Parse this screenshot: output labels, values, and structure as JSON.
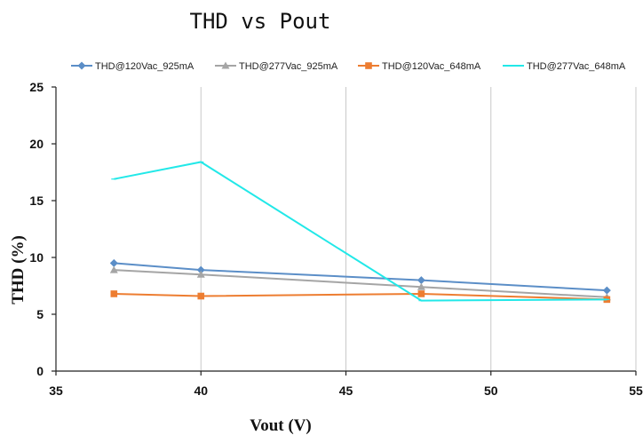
{
  "chart_data": {
    "type": "line",
    "title": "THD vs Pout",
    "xlabel": "Vout (V)",
    "ylabel": "THD (%)",
    "xlim": [
      35,
      55
    ],
    "ylim": [
      0,
      25
    ],
    "xticks": [
      35,
      40,
      45,
      50,
      55
    ],
    "yticks": [
      0,
      5,
      10,
      15,
      20,
      25
    ],
    "grid": "vertical",
    "legend": "top",
    "series": [
      {
        "name": "THD@120Vac_925mA",
        "color": "#5b8ec7",
        "marker": "diamond",
        "x": [
          37,
          40,
          47.6,
          54
        ],
        "y": [
          9.5,
          8.9,
          8.0,
          7.1
        ]
      },
      {
        "name": "THD@277Vac_925mA",
        "color": "#a5a5a5",
        "marker": "triangle",
        "x": [
          37,
          40,
          47.6,
          54
        ],
        "y": [
          8.9,
          8.5,
          7.4,
          6.5
        ]
      },
      {
        "name": "THD@120Vac_648mA",
        "color": "#ed7d31",
        "marker": "square",
        "x": [
          37,
          40,
          47.6,
          54
        ],
        "y": [
          6.8,
          6.6,
          6.8,
          6.3
        ]
      },
      {
        "name": "THD@277Vac_648mA",
        "color": "#22e8e8",
        "marker": "none",
        "x": [
          37,
          40,
          47.6,
          54
        ],
        "y": [
          16.9,
          18.4,
          6.2,
          6.3
        ]
      }
    ]
  }
}
